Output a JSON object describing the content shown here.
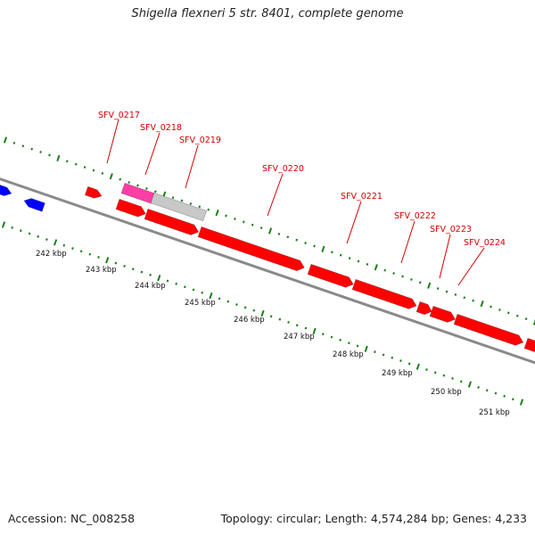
{
  "title": "Shigella flexneri 5 str. 8401, complete genome",
  "footer": {
    "accession": "Accession: NC_008258",
    "topology": "Topology: circular",
    "length": "Length: 4,574,284 bp",
    "genes": "Genes: 4,233"
  },
  "colors": {
    "backbone": "#8a8a8a",
    "cds_red": "#ff0000",
    "cds_blue": "#0000ff",
    "magenta": "#ff3ea5",
    "grey_feature": "#c8c8c8",
    "tick_green": "#1a7f1a",
    "label_red": "#d40000"
  },
  "scale_labels": [
    "242 kbp",
    "243 kbp",
    "244 kbp",
    "245 kbp",
    "246 kbp",
    "247 kbp",
    "248 kbp",
    "249 kbp",
    "250 kbp",
    "251 kbp"
  ],
  "gene_labels": [
    "SFV_0217",
    "SFV_0218",
    "SFV_0219",
    "SFV_0220",
    "SFV_0221",
    "SFV_0222",
    "SFV_0223",
    "SFV_0224"
  ]
}
